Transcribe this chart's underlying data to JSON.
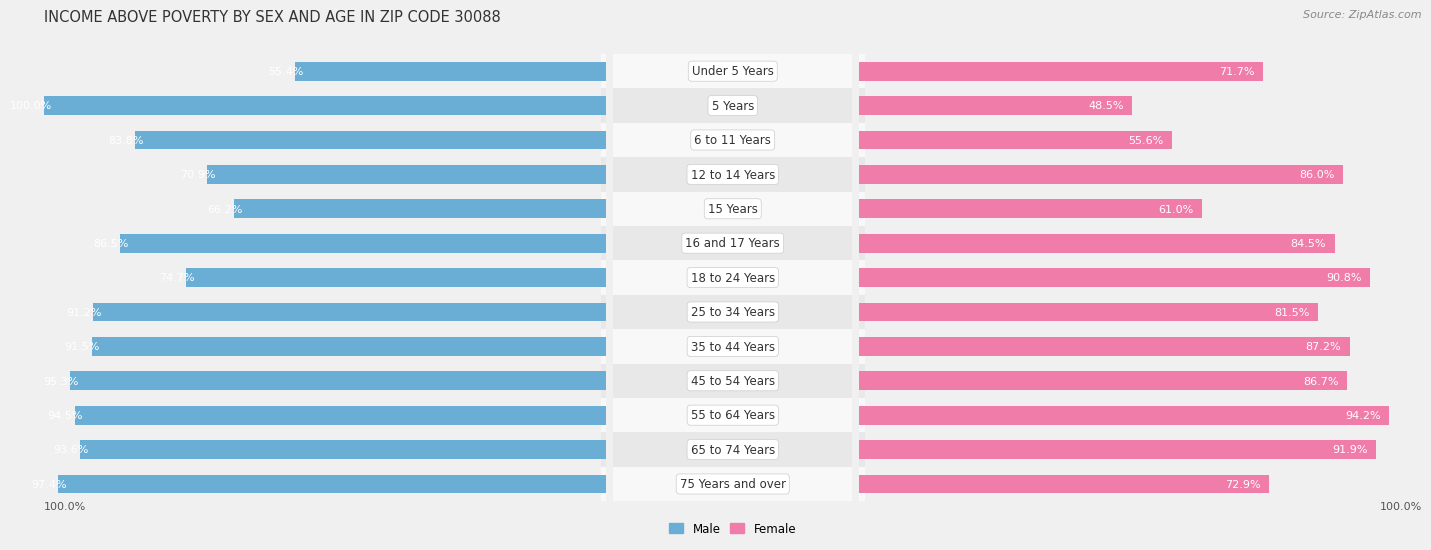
{
  "title": "INCOME ABOVE POVERTY BY SEX AND AGE IN ZIP CODE 30088",
  "source": "Source: ZipAtlas.com",
  "categories": [
    "Under 5 Years",
    "5 Years",
    "6 to 11 Years",
    "12 to 14 Years",
    "15 Years",
    "16 and 17 Years",
    "18 to 24 Years",
    "25 to 34 Years",
    "35 to 44 Years",
    "45 to 54 Years",
    "55 to 64 Years",
    "65 to 74 Years",
    "75 Years and over"
  ],
  "male_values": [
    55.4,
    100.0,
    83.8,
    70.9,
    66.2,
    86.5,
    74.7,
    91.2,
    91.5,
    95.3,
    94.5,
    93.6,
    97.4
  ],
  "female_values": [
    71.7,
    48.5,
    55.6,
    86.0,
    61.0,
    84.5,
    90.8,
    81.5,
    87.2,
    86.7,
    94.2,
    91.9,
    72.9
  ],
  "male_color": "#6aaed6",
  "female_color": "#f07caa",
  "male_color_light": "#c6dff0",
  "female_color_light": "#fad0e0",
  "bar_height": 0.55,
  "background_color": "#f0f0f0",
  "row_bg_light": "#f8f8f8",
  "row_bg_dark": "#e8e8e8",
  "max_value": 100.0,
  "title_fontsize": 10.5,
  "label_fontsize": 8.0,
  "value_fontsize": 8.0,
  "cat_fontsize": 8.5,
  "source_fontsize": 8.0
}
